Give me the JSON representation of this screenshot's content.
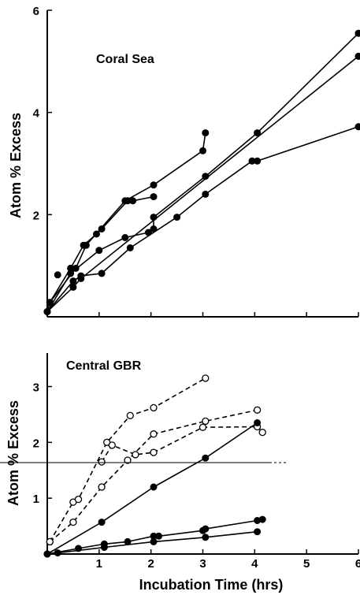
{
  "chart_data": [
    {
      "type": "line",
      "title": "Coral Sea",
      "xlabel": "",
      "ylabel": "Atom % Excess",
      "xlim": [
        0,
        6
      ],
      "ylim": [
        0,
        6
      ],
      "xticks": [
        1,
        2,
        3,
        4,
        5,
        6
      ],
      "xtick_labels": [],
      "yticks": [
        2,
        4,
        6
      ],
      "ytick_labels": [
        "2",
        "4",
        "6"
      ],
      "grid": false,
      "series": [
        {
          "style": "solid",
          "marker": "filled",
          "points": [
            [
              0,
              0.1
            ],
            [
              0.05,
              0.28
            ],
            [
              0.45,
              0.95
            ],
            [
              0.7,
              1.4
            ],
            [
              0.95,
              1.62
            ],
            [
              1.05,
              1.72
            ],
            [
              1.55,
              2.27
            ],
            [
              1.65,
              2.27
            ],
            [
              2.05,
              2.35
            ]
          ]
        },
        {
          "style": "solid",
          "marker": "filled",
          "points": [
            [
              0.05,
              0.28
            ],
            [
              0.55,
              0.95
            ],
            [
              0.75,
              1.4
            ],
            [
              1.5,
              2.27
            ],
            [
              2.05,
              2.58
            ],
            [
              3.0,
              3.25
            ],
            [
              3.05,
              3.6
            ]
          ]
        },
        {
          "style": "solid",
          "marker": "filled",
          "points": [
            [
              0,
              0.1
            ],
            [
              0.45,
              0.85
            ],
            [
              1.0,
              1.3
            ],
            [
              1.5,
              1.55
            ],
            [
              1.95,
              1.65
            ],
            [
              2.05,
              1.72
            ],
            [
              2.05,
              1.95
            ],
            [
              3.05,
              2.75
            ],
            [
              4.05,
              3.6
            ],
            [
              6,
              5.55
            ]
          ]
        },
        {
          "style": "solid",
          "marker": "filled",
          "points": [
            [
              0,
              0.1
            ],
            [
              0.5,
              0.7
            ],
            [
              0.65,
              0.8
            ],
            [
              1.05,
              0.85
            ],
            [
              1.6,
              1.35
            ],
            [
              2.5,
              1.95
            ],
            [
              3.05,
              2.4
            ],
            [
              3.95,
              3.05
            ],
            [
              4.05,
              3.05
            ],
            [
              6,
              3.72
            ]
          ]
        },
        {
          "style": "solid",
          "marker": "filled",
          "points": [
            [
              0,
              0.1
            ],
            [
              0.5,
              0.58
            ],
            [
              0.65,
              0.75
            ],
            [
              6,
              5.1
            ]
          ]
        },
        {
          "style": "none",
          "marker": "filled",
          "points": [
            [
              0.2,
              0.82
            ]
          ]
        }
      ]
    },
    {
      "type": "line",
      "title": "Central GBR",
      "xlabel": "Incubation Time (hrs)",
      "ylabel": "Atom % Excess",
      "xlim": [
        0,
        6
      ],
      "ylim": [
        0,
        3.6
      ],
      "xticks": [
        1,
        2,
        3,
        4,
        5,
        6
      ],
      "xtick_labels": [
        "1",
        "2",
        "3",
        "4",
        "5",
        "6"
      ],
      "yticks": [
        1,
        2,
        3
      ],
      "ytick_labels": [
        "1",
        "2",
        "3"
      ],
      "grid": false,
      "series": [
        {
          "style": "dashed",
          "marker": "open",
          "points": [
            [
              0.05,
              0.22
            ],
            [
              0.5,
              0.93
            ],
            [
              0.6,
              0.98
            ],
            [
              1.15,
              2.0
            ],
            [
              1.6,
              2.48
            ],
            [
              2.05,
              2.62
            ],
            [
              3.05,
              3.15
            ]
          ]
        },
        {
          "style": "dashed",
          "marker": "open",
          "points": [
            [
              0.05,
              0.22
            ],
            [
              0.5,
              0.57
            ],
            [
              1.05,
              1.2
            ],
            [
              1.55,
              1.68
            ],
            [
              2.05,
              2.15
            ],
            [
              3.05,
              2.38
            ],
            [
              4.05,
              2.58
            ]
          ]
        },
        {
          "style": "dashed",
          "marker": "open",
          "points": [
            [
              1.05,
              1.65
            ],
            [
              1.25,
              1.95
            ],
            [
              1.7,
              1.78
            ],
            [
              2.05,
              1.82
            ],
            [
              3.0,
              2.27
            ],
            [
              4.05,
              2.28
            ],
            [
              4.15,
              2.18
            ]
          ]
        },
        {
          "style": "solid",
          "marker": "filled",
          "points": [
            [
              0,
              0
            ],
            [
              1.05,
              0.57
            ],
            [
              2.05,
              1.2
            ],
            [
              3.05,
              1.72
            ],
            [
              4.05,
              2.35
            ]
          ]
        },
        {
          "style": "solid",
          "marker": "filled",
          "points": [
            [
              0,
              0
            ],
            [
              0.6,
              0.1
            ],
            [
              1.1,
              0.18
            ],
            [
              1.55,
              0.22
            ],
            [
              2.05,
              0.32
            ],
            [
              2.15,
              0.32
            ],
            [
              3.0,
              0.42
            ],
            [
              3.05,
              0.45
            ],
            [
              4.05,
              0.6
            ],
            [
              4.15,
              0.62
            ]
          ]
        },
        {
          "style": "solid",
          "marker": "filled",
          "points": [
            [
              0,
              0
            ],
            [
              0.2,
              0.02
            ],
            [
              1.1,
              0.12
            ],
            [
              2.05,
              0.22
            ],
            [
              3.05,
              0.3
            ],
            [
              4.05,
              0.4
            ]
          ]
        }
      ]
    }
  ]
}
